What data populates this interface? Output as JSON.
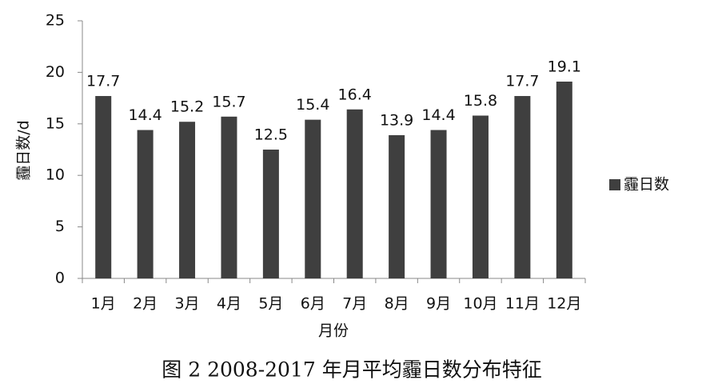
{
  "chart_data": {
    "type": "bar",
    "caption": "图 2 2008-2017 年月平均霾日数分布特征",
    "x_label": "月份",
    "y_label": "霾日数/d",
    "categories": [
      "1月",
      "2月",
      "3月",
      "4月",
      "5月",
      "6月",
      "7月",
      "8月",
      "9月",
      "10月",
      "11月",
      "12月"
    ],
    "series": [
      {
        "name": "霾日数",
        "color": "#3f3f3f",
        "values": [
          17.7,
          14.4,
          15.2,
          15.7,
          12.5,
          15.4,
          16.4,
          13.9,
          14.4,
          15.8,
          17.7,
          19.1
        ]
      }
    ],
    "ylim": [
      0,
      25
    ],
    "yticks": [
      0,
      5,
      10,
      15,
      20,
      25
    ],
    "grid": false,
    "legend": "right"
  }
}
